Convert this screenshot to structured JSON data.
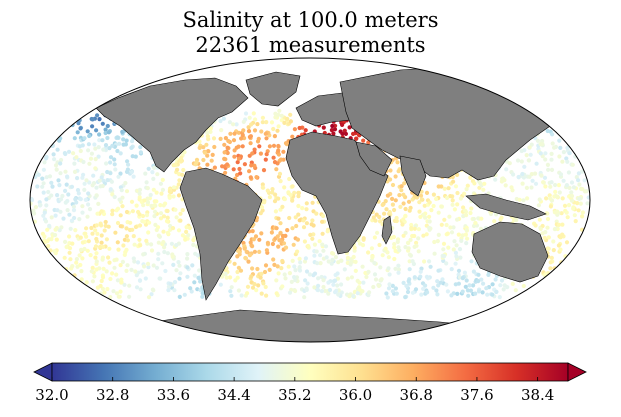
{
  "title": "Salinity at 100.0 meters",
  "subtitle": "22361 measurements",
  "colorbar": {
    "min": 32.0,
    "max": 38.8,
    "extend": "both",
    "ticks": [
      "32.0",
      "32.8",
      "33.6",
      "34.4",
      "35.2",
      "36.0",
      "36.8",
      "37.6",
      "38.4"
    ],
    "colormap": [
      "#313695",
      "#4575b4",
      "#74add1",
      "#abd9e9",
      "#e0f3f8",
      "#ffffbf",
      "#fee090",
      "#fdae61",
      "#f46d43",
      "#d73027",
      "#a50026"
    ]
  },
  "map": {
    "projection": "mollweide",
    "land_color": "#7f7f7f",
    "ocean_color": "#ffffff"
  },
  "chart_data": {
    "type": "scatter",
    "title": "Salinity at 100.0 meters",
    "subtitle": "22361 measurements",
    "value_range": [
      32.0,
      38.8
    ],
    "regions": [
      {
        "lon": -160,
        "lat": 50,
        "salinity": 32.8
      },
      {
        "lon": -140,
        "lat": 45,
        "salinity": 33.2
      },
      {
        "lon": -130,
        "lat": 30,
        "salinity": 34.3
      },
      {
        "lon": -150,
        "lat": 20,
        "salinity": 35.0
      },
      {
        "lon": -160,
        "lat": 5,
        "salinity": 34.6
      },
      {
        "lon": -130,
        "lat": -20,
        "salinity": 35.8
      },
      {
        "lon": -120,
        "lat": -35,
        "salinity": 34.9
      },
      {
        "lon": -100,
        "lat": -55,
        "salinity": 34.3
      },
      {
        "lon": -50,
        "lat": 30,
        "salinity": 36.8
      },
      {
        "lon": -40,
        "lat": 22,
        "salinity": 37.2
      },
      {
        "lon": -60,
        "lat": 45,
        "salinity": 34.8
      },
      {
        "lon": -30,
        "lat": 50,
        "salinity": 35.4
      },
      {
        "lon": -20,
        "lat": 0,
        "salinity": 35.6
      },
      {
        "lon": -25,
        "lat": -20,
        "salinity": 36.6
      },
      {
        "lon": 0,
        "lat": -40,
        "salinity": 34.8
      },
      {
        "lon": 15,
        "lat": 38,
        "salinity": 38.5
      },
      {
        "lon": 60,
        "lat": 15,
        "salinity": 36.2
      },
      {
        "lon": 80,
        "lat": -20,
        "salinity": 35.3
      },
      {
        "lon": 90,
        "lat": -45,
        "salinity": 34.5
      },
      {
        "lon": 150,
        "lat": 25,
        "salinity": 34.9
      },
      {
        "lon": 160,
        "lat": -10,
        "salinity": 35.4
      },
      {
        "lon": 165,
        "lat": -30,
        "salinity": 35.6
      },
      {
        "lon": 140,
        "lat": -55,
        "salinity": 34.3
      }
    ]
  }
}
